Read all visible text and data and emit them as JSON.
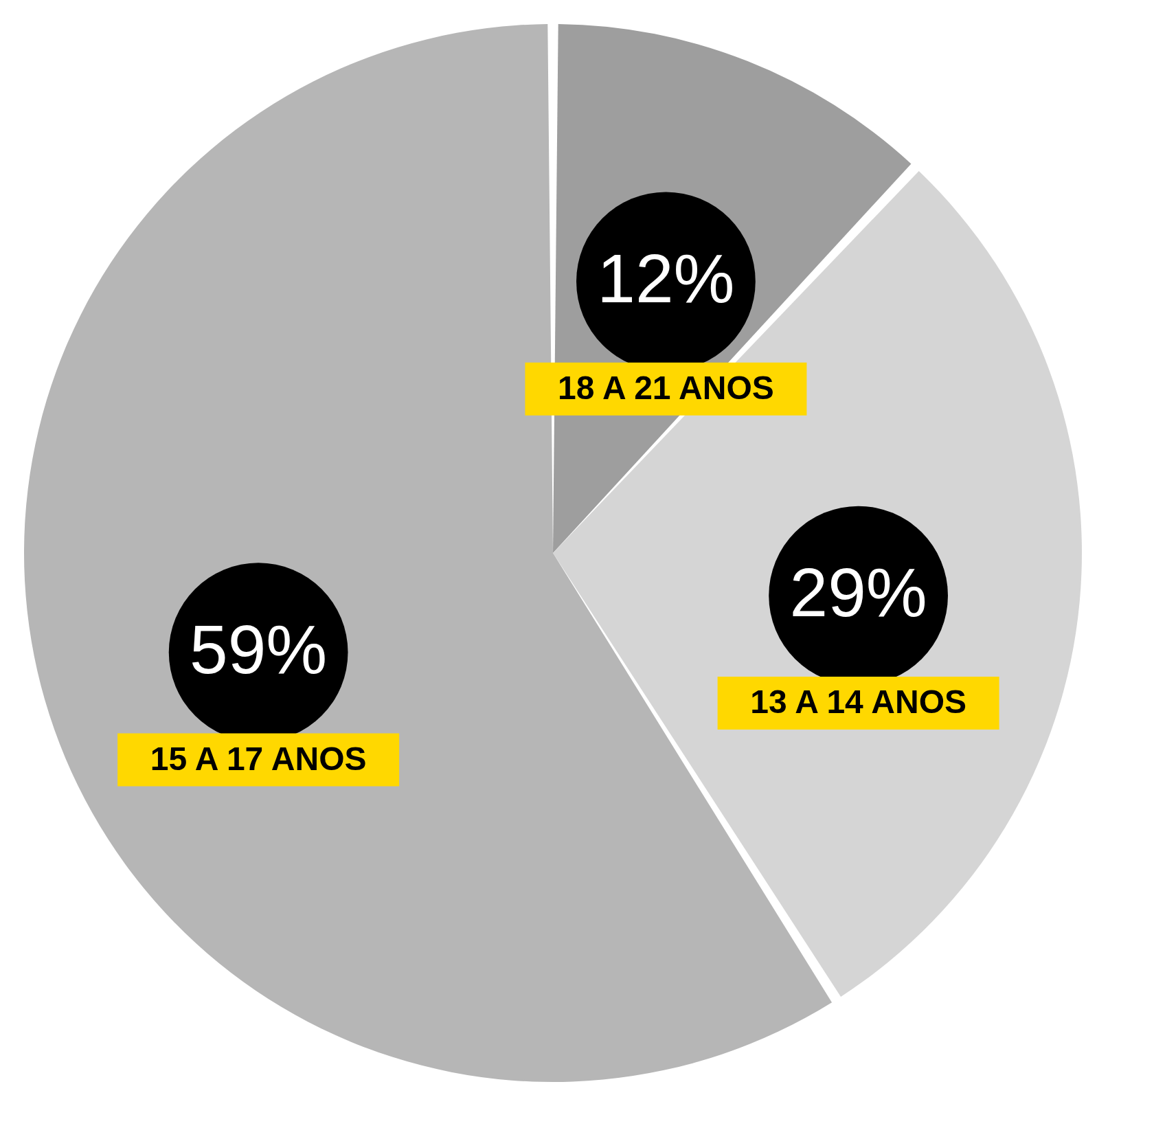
{
  "chart_data": {
    "type": "pie",
    "categories": [
      "18 A 21 ANOS",
      "13 A 14 ANOS",
      "15 A 17 ANOS"
    ],
    "values": [
      12,
      29,
      59
    ],
    "value_labels": [
      "12%",
      "29%",
      "59%"
    ],
    "colors": [
      "#9e9e9e",
      "#d5d5d5",
      "#b6b6b6"
    ],
    "legend": false
  }
}
